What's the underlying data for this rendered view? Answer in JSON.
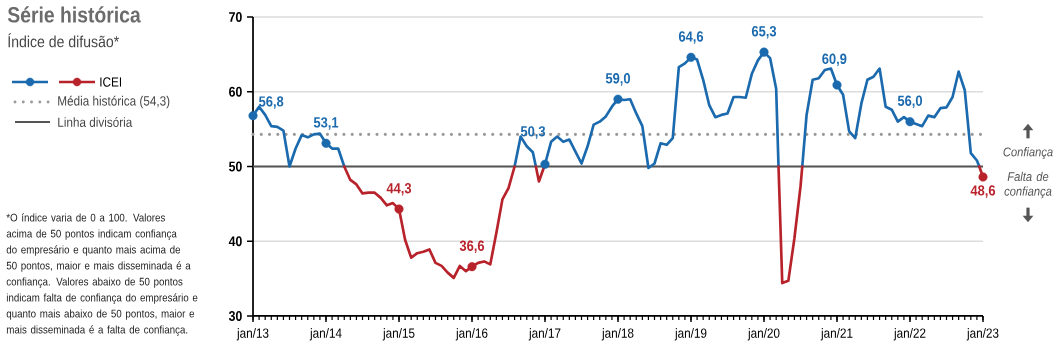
{
  "chart_data": {
    "type": "line",
    "title": "Série histórica",
    "subtitle": "Índice de difusão*",
    "xlim": [
      "2013-01",
      "2023-01"
    ],
    "ylim": [
      30,
      70
    ],
    "xticks": [
      {
        "value": "2013-01",
        "label": "jan/13"
      },
      {
        "value": "2014-01",
        "label": "jan/14"
      },
      {
        "value": "2015-01",
        "label": "jan/15"
      },
      {
        "value": "2016-01",
        "label": "jan/16"
      },
      {
        "value": "2017-01",
        "label": "jan/17"
      },
      {
        "value": "2018-01",
        "label": "jan/18"
      },
      {
        "value": "2019-01",
        "label": "jan/19"
      },
      {
        "value": "2020-01",
        "label": "jan/20"
      },
      {
        "value": "2021-01",
        "label": "jan/21"
      },
      {
        "value": "2022-01",
        "label": "jan/22"
      },
      {
        "value": "2023-01",
        "label": "jan/23"
      }
    ],
    "yticks": [
      30,
      40,
      50,
      60,
      70
    ],
    "grid": "y",
    "legend": "left",
    "series": [
      {
        "type": "line",
        "color": "#1b6aae",
        "x": [
          "2013-01",
          "2013-02",
          "2013-03",
          "2013-04",
          "2013-05",
          "2013-06",
          "2013-07",
          "2013-08",
          "2013-09",
          "2013-10",
          "2013-11",
          "2013-12",
          "2014-01",
          "2014-02",
          "2014-03",
          "2014-04",
          "2015-06",
          "2016-08",
          "2016-09",
          "2016-10",
          "2016-11",
          "2016-11-16",
          "2016-12-05",
          "2016-12-28",
          "2017-01",
          "2017-02",
          "2017-03",
          "2017-04",
          "2017-05",
          "2017-06",
          "2017-07",
          "2017-08",
          "2017-09",
          "2017-10",
          "2017-11",
          "2017-12",
          "2018-01",
          "2018-02",
          "2018-03",
          "2018-04",
          "2018-05",
          "2018-06",
          "2018-07",
          "2018-08",
          "2018-09",
          "2018-10",
          "2018-11",
          "2018-12",
          "2019-01",
          "2019-02",
          "2019-03",
          "2019-04",
          "2019-05",
          "2019-06",
          "2019-07",
          "2019-08",
          "2019-09",
          "2019-10",
          "2019-11",
          "2019-12",
          "2020-01",
          "2020-02",
          "2020-03",
          "2020-03-13",
          "2020-05",
          "2020-07-10",
          "2020-08",
          "2020-09",
          "2020-10",
          "2020-11",
          "2020-12",
          "2021-01",
          "2021-02",
          "2021-03",
          "2021-04",
          "2021-05",
          "2021-06",
          "2021-07",
          "2021-08",
          "2021-09",
          "2021-10",
          "2021-11",
          "2021-12",
          "2022-01",
          "2022-02",
          "2022-03",
          "2022-04",
          "2022-05",
          "2022-06",
          "2022-07",
          "2022-08",
          "2022-09",
          "2022-10",
          "2022-11",
          "2022-12",
          "2022-12-13"
        ],
        "values": [
          56.8,
          58.0,
          56.9,
          55.4,
          55.3,
          54.8,
          50.0,
          52.4,
          54.2,
          53.9,
          54.3,
          54.4,
          53.1,
          52.4,
          52.4,
          50.0,
          null,
          50.0,
          54.0,
          52.7,
          51.9,
          50.0,
          null,
          50.0,
          50.3,
          53.3,
          54.0,
          53.3,
          53.6,
          52.0,
          50.4,
          52.7,
          55.6,
          56.0,
          56.7,
          58.0,
          59.0,
          58.9,
          59.0,
          57.1,
          55.4,
          49.8,
          50.4,
          53.1,
          52.9,
          53.8,
          63.3,
          63.8,
          64.6,
          64.3,
          61.6,
          58.2,
          56.6,
          56.9,
          57.1,
          59.3,
          59.3,
          59.2,
          62.4,
          64.2,
          65.3,
          64.5,
          60.4,
          50.0,
          null,
          50.0,
          56.9,
          61.6,
          61.8,
          62.9,
          63.1,
          60.9,
          59.6,
          54.7,
          53.8,
          58.4,
          61.6,
          62.0,
          63.1,
          58.0,
          57.6,
          56.0,
          56.6,
          56.0,
          55.7,
          55.4,
          56.8,
          56.6,
          57.8,
          57.9,
          59.3,
          62.7,
          60.2,
          51.8,
          50.8,
          50.0
        ]
      },
      {
        "type": "line",
        "name": "ICEI",
        "color": "#b8232b",
        "x": [
          "2014-04",
          "2014-05",
          "2014-06",
          "2014-07",
          "2014-08",
          "2014-09",
          "2014-10",
          "2014-11",
          "2014-12",
          "2015-01",
          "2015-02",
          "2015-03",
          "2015-04",
          "2015-05",
          "2015-06",
          "2015-07",
          "2015-08",
          "2015-09",
          "2015-10",
          "2015-11",
          "2015-12",
          "2016-01",
          "2016-02",
          "2016-03",
          "2016-04",
          "2016-05",
          "2016-06",
          "2016-07",
          "2016-08",
          "2016-10",
          "2016-11-16",
          "2016-12",
          "2016-12-28",
          "2019-05",
          "2020-03-13",
          "2020-04",
          "2020-05",
          "2020-06",
          "2020-07",
          "2020-07-10",
          "2021-10",
          "2022-12-13",
          "2023-01"
        ],
        "values": [
          50.0,
          48.2,
          47.6,
          46.4,
          46.5,
          46.5,
          45.8,
          44.8,
          45.1,
          44.3,
          40.2,
          37.8,
          38.4,
          38.6,
          38.9,
          37.1,
          36.7,
          35.8,
          35.1,
          36.7,
          36.0,
          36.6,
          37.1,
          37.3,
          36.9,
          41.1,
          45.6,
          47.1,
          50.0,
          null,
          50.0,
          48.0,
          50.0,
          null,
          50.0,
          34.4,
          34.7,
          40.4,
          47.3,
          50.0,
          null,
          50.0,
          48.6
        ]
      },
      {
        "type": "scatter",
        "marker": "circle",
        "x": [
          "2013-01",
          "2014-01",
          "2015-01",
          "2016-01",
          "2017-01",
          "2018-01",
          "2019-01",
          "2020-01",
          "2021-01",
          "2022-01",
          "2023-01"
        ],
        "values": [
          56.8,
          53.1,
          44.3,
          36.6,
          50.3,
          59.0,
          64.6,
          65.3,
          60.9,
          56.0,
          48.6
        ],
        "colors": [
          "#1b6aae",
          "#1b6aae",
          "#b8232b",
          "#b8232b",
          "#1b6aae",
          "#1b6aae",
          "#1b6aae",
          "#1b6aae",
          "#1b6aae",
          "#1b6aae",
          "#b8232b"
        ],
        "value_labels": [
          "56,8",
          "53,1",
          "44,3",
          "36,6",
          "50,3",
          "59,0",
          "64,6",
          "65,3",
          "60,9",
          "56,0",
          "48,6"
        ]
      }
    ],
    "ref_lines": [
      {
        "axis": "y",
        "value": 54.3,
        "label": "Média histórica (54,3)",
        "color": "#9a9a9a",
        "line_style": "dotted"
      },
      {
        "axis": "y",
        "value": 50,
        "label": "Linha divisória",
        "color": "#555555",
        "line_style": "solid"
      }
    ],
    "annotations": [
      "*O índice varia de 0 a 100. Valores acima de 50 pontos indicam confiança do empresário e quanto mais acima de 50 pontos, maior e mais disseminada é a confiança. Valores abaixo de 50 pontos indicam falta de confiança do empresário e quanto mais abaixo de 50 pontos, maior e mais disseminada é a falta de confiança.",
      "Confiança",
      "Falta de confiança"
    ]
  }
}
